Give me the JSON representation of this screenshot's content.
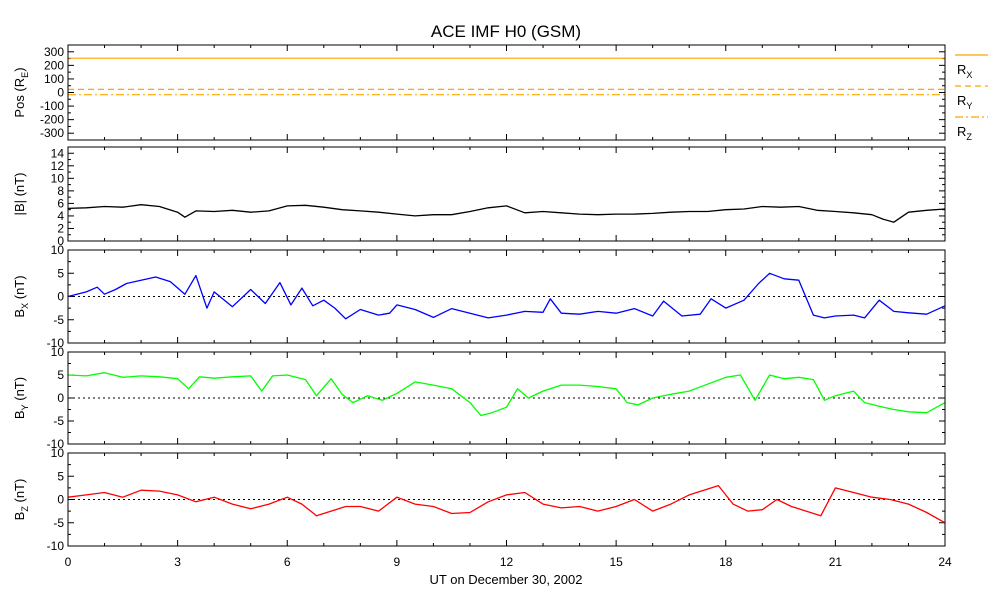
{
  "chart_data": {
    "type": "line",
    "title": "ACE IMF H0 (GSM)",
    "xlabel": "UT on December 30, 2002",
    "xlim": [
      0,
      24
    ],
    "xticks": [
      "0",
      "3",
      "6",
      "9",
      "12",
      "15",
      "18",
      "21",
      "24"
    ],
    "panels": [
      {
        "id": "pos",
        "ylabel": "Pos (R_E)",
        "ylim": [
          -350,
          350
        ],
        "yticks": [
          "-300",
          "-200",
          "-100",
          "0",
          "100",
          "200",
          "300"
        ],
        "legend": [
          "R_X",
          "R_Y",
          "R_Z"
        ],
        "zero_line": false,
        "series": [
          {
            "name": "R_X",
            "color": "#ffa500",
            "style": "solid",
            "x": [
              0,
              24
            ],
            "y": [
              253,
              253
            ]
          },
          {
            "name": "R_Y",
            "color": "#ffa500",
            "style": "dashed",
            "x": [
              0,
              24
            ],
            "y": [
              23,
              23
            ]
          },
          {
            "name": "R_Z",
            "color": "#ffa500",
            "style": "dashdot",
            "x": [
              0,
              24
            ],
            "y": [
              -16,
              -16
            ]
          }
        ]
      },
      {
        "id": "btot",
        "ylabel": "|B| (nT)",
        "ylim": [
          0,
          15
        ],
        "yticks": [
          "0",
          "2",
          "4",
          "6",
          "8",
          "10",
          "12",
          "14"
        ],
        "zero_line": false,
        "series": [
          {
            "name": "|B|",
            "color": "#000000",
            "x": [
              0,
              0.5,
              1,
              1.5,
              2,
              2.5,
              3,
              3.2,
              3.5,
              4,
              4.5,
              5,
              5.5,
              6,
              6.5,
              7,
              7.5,
              8,
              8.5,
              9,
              9.5,
              10,
              10.5,
              11,
              11.5,
              12,
              12.5,
              13,
              13.5,
              14,
              14.5,
              15,
              15.5,
              16,
              16.5,
              17,
              17.5,
              18,
              18.5,
              19,
              19.5,
              20,
              20.5,
              21,
              21.5,
              22,
              22.3,
              22.6,
              23,
              23.5,
              24
            ],
            "y": [
              5.2,
              5.3,
              5.5,
              5.4,
              5.8,
              5.5,
              4.6,
              3.8,
              4.8,
              4.7,
              4.9,
              4.6,
              4.8,
              5.6,
              5.7,
              5.4,
              5.0,
              4.8,
              4.6,
              4.3,
              4.0,
              4.2,
              4.2,
              4.7,
              5.3,
              5.6,
              4.5,
              4.7,
              4.5,
              4.3,
              4.2,
              4.3,
              4.3,
              4.4,
              4.6,
              4.7,
              4.7,
              5.0,
              5.1,
              5.5,
              5.4,
              5.5,
              4.9,
              4.7,
              4.5,
              4.2,
              3.5,
              3.0,
              4.6,
              4.9,
              5.1
            ]
          }
        ]
      },
      {
        "id": "bx",
        "ylabel": "B_X (nT)",
        "ylim": [
          -10,
          10
        ],
        "yticks": [
          "-10",
          "-5",
          "0",
          "5",
          "10"
        ],
        "zero_line": true,
        "series": [
          {
            "name": "B_X",
            "color": "#0000ff",
            "x": [
              0,
              0.5,
              0.8,
              1,
              1.3,
              1.6,
              2,
              2.4,
              2.8,
              3.2,
              3.5,
              3.8,
              4,
              4.5,
              5,
              5.4,
              5.8,
              6.1,
              6.4,
              6.7,
              7,
              7.3,
              7.6,
              8,
              8.5,
              8.8,
              9,
              9.5,
              10,
              10.5,
              11,
              11.5,
              12,
              12.5,
              13,
              13.2,
              13.5,
              14,
              14.5,
              15,
              15.5,
              16,
              16.3,
              16.8,
              17.3,
              17.6,
              18,
              18.5,
              18.9,
              19.2,
              19.6,
              20,
              20.4,
              20.7,
              21,
              21.5,
              21.8,
              22.2,
              22.6,
              23,
              23.5,
              24
            ],
            "y": [
              0,
              1,
              2,
              0.5,
              1.5,
              2.8,
              3.5,
              4.2,
              3.2,
              0.5,
              4.5,
              -2.5,
              1,
              -2.2,
              1.5,
              -1.5,
              3,
              -1.8,
              1.8,
              -2,
              -0.8,
              -2.5,
              -4.8,
              -2.8,
              -4,
              -3.6,
              -1.8,
              -2.8,
              -4.5,
              -2.6,
              -3.6,
              -4.6,
              -4,
              -3.2,
              -3.4,
              -0.5,
              -3.6,
              -3.8,
              -3.2,
              -3.6,
              -2.6,
              -4.2,
              -1,
              -4.2,
              -3.8,
              -0.5,
              -2.5,
              -0.8,
              2.8,
              5,
              3.8,
              3.5,
              -4,
              -4.6,
              -4.2,
              -4,
              -4.6,
              -0.8,
              -3.2,
              -3.5,
              -3.8,
              -2
            ]
          }
        ]
      },
      {
        "id": "by",
        "ylabel": "B_Y (nT)",
        "ylim": [
          -10,
          10
        ],
        "yticks": [
          "-10",
          "-5",
          "0",
          "5",
          "10"
        ],
        "zero_line": true,
        "series": [
          {
            "name": "B_Y",
            "color": "#00ff00",
            "x": [
              0,
              0.5,
              1,
              1.5,
              2,
              2.5,
              3,
              3.3,
              3.6,
              4,
              4.5,
              5,
              5.3,
              5.6,
              6,
              6.5,
              6.8,
              7.2,
              7.5,
              7.8,
              8.2,
              8.6,
              9,
              9.5,
              10,
              10.5,
              11,
              11.3,
              11.6,
              12,
              12.3,
              12.6,
              13,
              13.5,
              14,
              14.5,
              15,
              15.3,
              15.6,
              16,
              16.5,
              17,
              17.5,
              18,
              18.4,
              18.8,
              19.2,
              19.6,
              20,
              20.4,
              20.7,
              21,
              21.5,
              21.8,
              22.2,
              22.6,
              23,
              23.5,
              24
            ],
            "y": [
              5,
              4.8,
              5.5,
              4.5,
              4.8,
              4.6,
              4.2,
              2,
              4.6,
              4.3,
              4.6,
              4.8,
              1.5,
              4.8,
              5,
              4,
              0.5,
              4.2,
              0.8,
              -1,
              0.5,
              -0.5,
              1,
              3.5,
              2.8,
              2,
              -1,
              -3.8,
              -3.2,
              -2,
              2,
              0,
              1.5,
              2.8,
              2.8,
              2.5,
              2,
              -1,
              -1.5,
              0,
              0.8,
              1.5,
              3,
              4.5,
              5,
              -0.5,
              5,
              4.2,
              4.5,
              4,
              -0.5,
              0.5,
              1.5,
              -1,
              -1.8,
              -2.5,
              -3,
              -3.2,
              -1
            ]
          }
        ]
      },
      {
        "id": "bz",
        "ylabel": "B_Z (nT)",
        "ylim": [
          -10,
          10
        ],
        "yticks": [
          "-10",
          "-5",
          "0",
          "5",
          "10"
        ],
        "zero_line": true,
        "series": [
          {
            "name": "B_Z",
            "color": "#ff0000",
            "x": [
              0,
              0.5,
              1,
              1.5,
              2,
              2.5,
              3,
              3.5,
              4,
              4.5,
              5,
              5.5,
              6,
              6.4,
              6.8,
              7.2,
              7.6,
              8,
              8.5,
              9,
              9.5,
              10,
              10.5,
              11,
              11.5,
              12,
              12.5,
              13,
              13.5,
              14,
              14.5,
              15,
              15.5,
              16,
              16.5,
              17,
              17.4,
              17.8,
              18.2,
              18.6,
              19,
              19.4,
              19.8,
              20.2,
              20.6,
              21,
              21.5,
              22,
              22.5,
              23,
              23.5,
              24
            ],
            "y": [
              0.5,
              1,
              1.5,
              0.5,
              2,
              1.8,
              1,
              -0.5,
              0.5,
              -1,
              -2,
              -1,
              0.5,
              -1,
              -3.5,
              -2.5,
              -1.5,
              -1.5,
              -2.5,
              0.5,
              -1,
              -1.5,
              -3,
              -2.8,
              -0.5,
              1,
              1.5,
              -1,
              -1.8,
              -1.5,
              -2.5,
              -1.5,
              0,
              -2.5,
              -1,
              1,
              2,
              3,
              -1,
              -2.5,
              -2.2,
              0,
              -1.5,
              -2.5,
              -3.5,
              2.5,
              1.5,
              0.5,
              0,
              -1,
              -2.8,
              -5
            ]
          }
        ]
      }
    ]
  }
}
